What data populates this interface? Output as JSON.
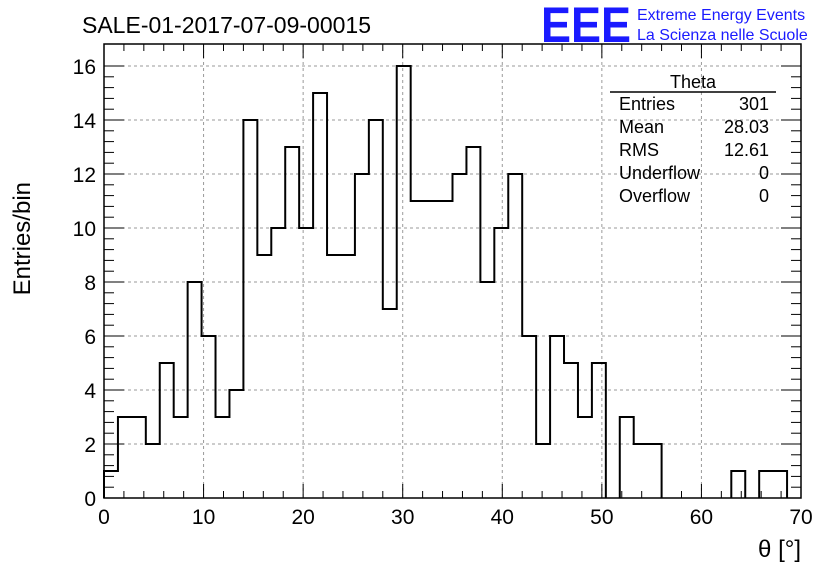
{
  "chart_data": {
    "type": "bar",
    "title": "SALE-01-2017-07-09-00015",
    "xlabel": "θ [°]",
    "ylabel": "Entries/bin",
    "xlim": [
      0,
      70
    ],
    "ylim": [
      0,
      16.5
    ],
    "bin_width": 1.4,
    "x_ticks": [
      0,
      10,
      20,
      30,
      40,
      50,
      60,
      70
    ],
    "y_ticks": [
      0,
      2,
      4,
      6,
      8,
      10,
      12,
      14,
      16
    ],
    "grid": true,
    "bin_edges_start": 0,
    "values": [
      1,
      3,
      3,
      2,
      5,
      3,
      8,
      6,
      3,
      4,
      14,
      9,
      10,
      13,
      10,
      15,
      9,
      9,
      12,
      14,
      7,
      16,
      11,
      11,
      11,
      12,
      13,
      8,
      10,
      12,
      6,
      2,
      6,
      5,
      3,
      5,
      0,
      3,
      2,
      2,
      0,
      0,
      0,
      0,
      0,
      1,
      0,
      1,
      1,
      0
    ],
    "stats": {
      "name": "Theta",
      "rows": [
        {
          "label": "Entries",
          "value": "301"
        },
        {
          "label": "Mean",
          "value": "28.03"
        },
        {
          "label": "RMS",
          "value": "12.61"
        },
        {
          "label": "Underflow",
          "value": "0"
        },
        {
          "label": "Overflow",
          "value": "0"
        }
      ]
    },
    "line_color": "#000000",
    "grid_color": "#9a9a9a"
  },
  "logo": {
    "letters": "EEE",
    "line1": "Extreme Energy Events",
    "line2": "La Scienza nelle Scuole",
    "color": "#1a1aff"
  }
}
